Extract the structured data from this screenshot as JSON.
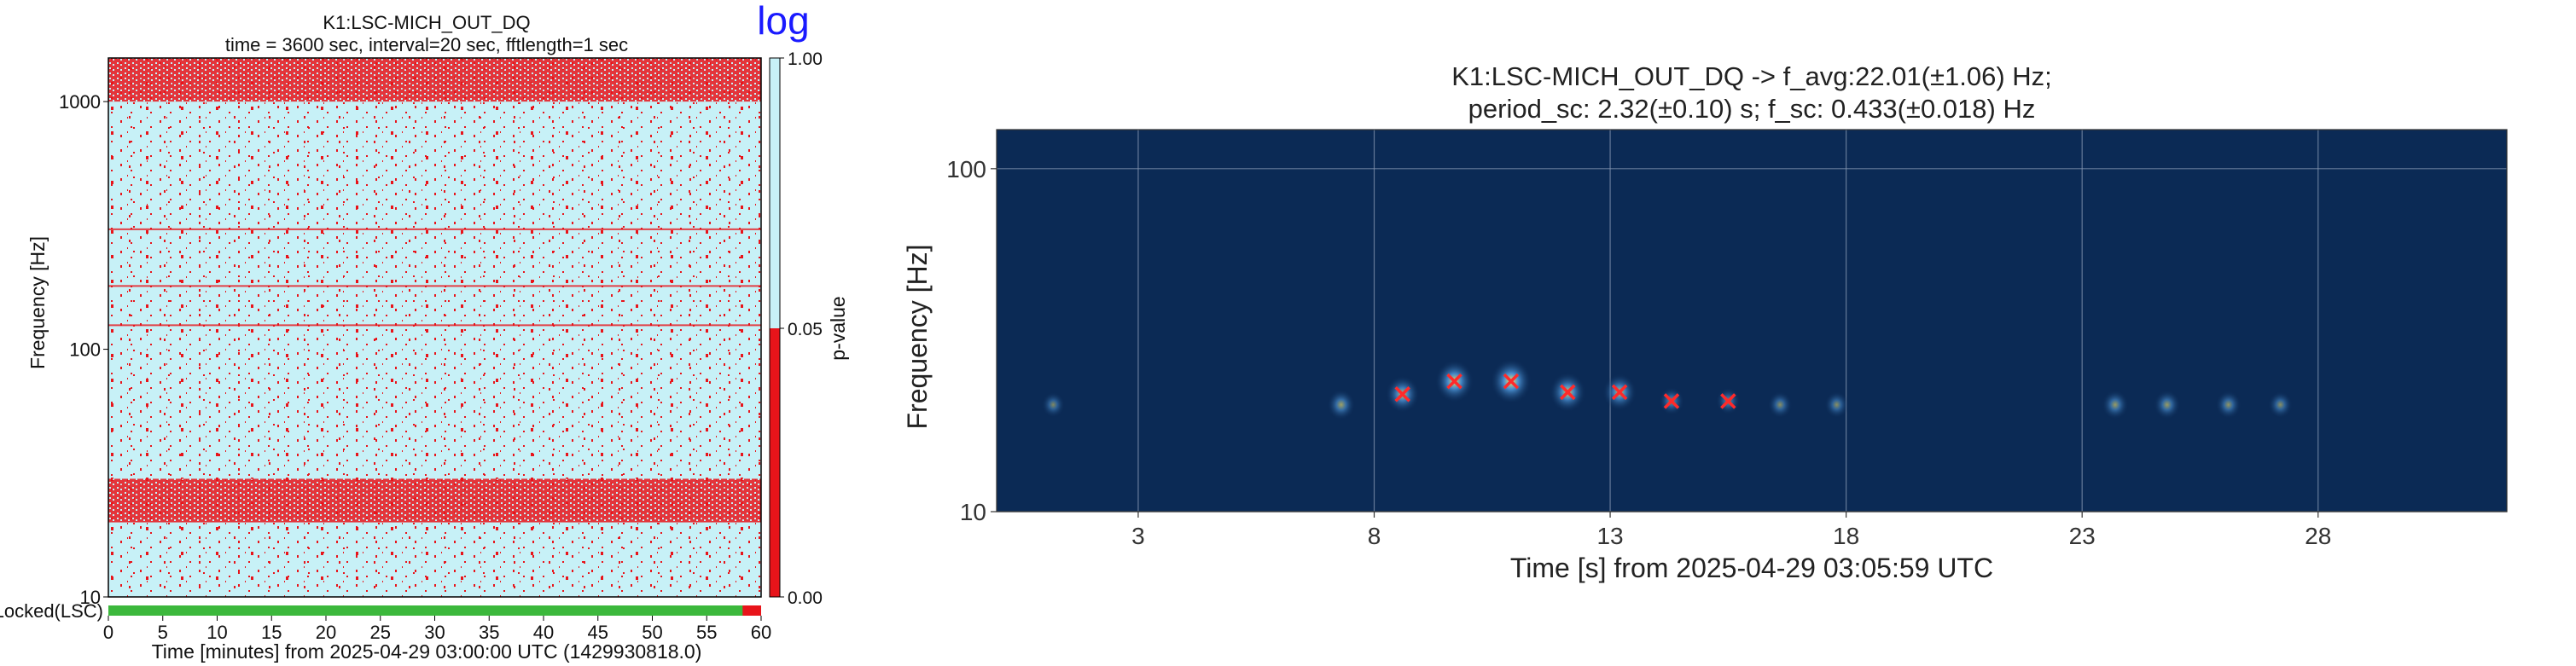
{
  "chart_data": [
    {
      "type": "heatmap",
      "title": "K1:LSC-MICH_OUT_DQ",
      "subtitle": "time = 3600 sec, interval=20 sec, fftlength=1 sec",
      "corner_label": "log",
      "xlabel": "Time [minutes] from 2025-04-29 03:00:00 UTC (1429930818.0)",
      "ylabel": "Frequency [Hz]",
      "xlim": [
        0,
        60
      ],
      "ylim": [
        10,
        1500
      ],
      "y_scale": "log",
      "x_ticks": [
        "0",
        "5",
        "10",
        "15",
        "20",
        "25",
        "30",
        "35",
        "40",
        "45",
        "50",
        "55",
        "60"
      ],
      "y_ticks": [
        "10",
        "100",
        "1000"
      ],
      "colorbar": {
        "label": "p-value",
        "ticks": [
          "0.00",
          "0.05",
          "1.00"
        ],
        "low_color": "#e8141a",
        "high_color": "#c7f1f7"
      },
      "segment_label": "Locked(LSC)",
      "segment_color": "#3cb83c",
      "lines_hz": [
        305,
        180,
        125
      ],
      "bands": [
        {
          "x": [
            0,
            60
          ],
          "freq_hz": [
            20,
            30
          ]
        },
        {
          "x": [
            0,
            60
          ],
          "freq_hz": [
            1000,
            1500
          ]
        }
      ]
    },
    {
      "type": "scatter",
      "title": "K1:LSC-MICH_OUT_DQ -> f_avg:22.01(±1.06) Hz;",
      "subtitle": "period_sc: 2.32(±0.10) s; f_sc: 0.433(±0.018) Hz",
      "xlabel": "Time [s] from 2025-04-29 03:05:59 UTC",
      "ylabel": "Frequency [Hz]",
      "xlim": [
        0,
        32
      ],
      "ylim": [
        10,
        130
      ],
      "y_scale": "log",
      "grid": true,
      "x_ticks": [
        "3",
        "8",
        "13",
        "18",
        "23",
        "28"
      ],
      "y_ticks": [
        "10",
        "100"
      ],
      "background_color": "#0b2a55",
      "marker_color": "#ff2a2a",
      "points": [
        {
          "x": 8.6,
          "y": 22.0
        },
        {
          "x": 9.7,
          "y": 24.0
        },
        {
          "x": 10.9,
          "y": 24.0
        },
        {
          "x": 12.1,
          "y": 22.3
        },
        {
          "x": 13.2,
          "y": 22.3
        },
        {
          "x": 14.3,
          "y": 21.0
        },
        {
          "x": 15.5,
          "y": 21.0
        }
      ],
      "blobs": [
        {
          "x": 1.2,
          "y": 20.5,
          "level": 0.25
        },
        {
          "x": 7.3,
          "y": 20.5,
          "level": 0.45
        },
        {
          "x": 8.6,
          "y": 22.0,
          "level": 0.7
        },
        {
          "x": 9.7,
          "y": 24.0,
          "level": 0.9
        },
        {
          "x": 10.9,
          "y": 24.0,
          "level": 1.0
        },
        {
          "x": 12.1,
          "y": 22.3,
          "level": 0.8
        },
        {
          "x": 13.2,
          "y": 22.3,
          "level": 0.7
        },
        {
          "x": 14.3,
          "y": 21.0,
          "level": 0.35
        },
        {
          "x": 15.5,
          "y": 21.0,
          "level": 0.3
        },
        {
          "x": 16.6,
          "y": 20.5,
          "level": 0.3
        },
        {
          "x": 17.8,
          "y": 20.5,
          "level": 0.3
        },
        {
          "x": 23.7,
          "y": 20.5,
          "level": 0.4
        },
        {
          "x": 24.8,
          "y": 20.5,
          "level": 0.4
        },
        {
          "x": 26.1,
          "y": 20.5,
          "level": 0.35
        },
        {
          "x": 27.2,
          "y": 20.5,
          "level": 0.3
        }
      ]
    }
  ]
}
